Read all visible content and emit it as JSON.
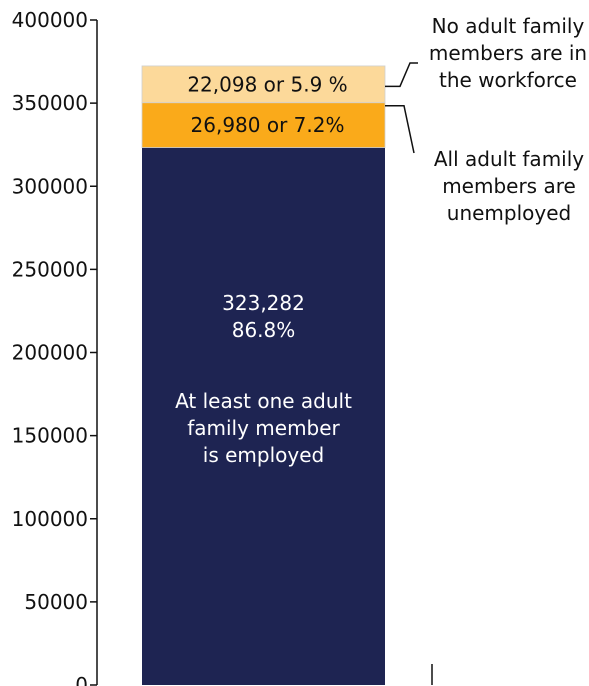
{
  "chart_data": {
    "type": "bar",
    "stacked": true,
    "ylim": [
      0,
      400000
    ],
    "y_ticks": [
      "0",
      "50000",
      "100000",
      "150000",
      "200000",
      "250000",
      "300000",
      "350000",
      "400000"
    ],
    "segments": [
      {
        "value": 323282,
        "color": "#1e2452",
        "inside_lines": [
          "323,282",
          "86.8%",
          "",
          "At least one adult",
          "family member",
          "is employed"
        ]
      },
      {
        "value": 26980,
        "color": "#faaa1a",
        "inside_lines": [
          "26,980 or 7.2%"
        ],
        "callout_lines": [
          "All adult family",
          "members are",
          "unemployed"
        ]
      },
      {
        "value": 22098,
        "color": "#fcd99a",
        "inside_lines": [
          "22,098 or 5.9 %"
        ],
        "callout_lines": [
          "No adult family",
          "members are in",
          "the workforce"
        ]
      }
    ]
  }
}
